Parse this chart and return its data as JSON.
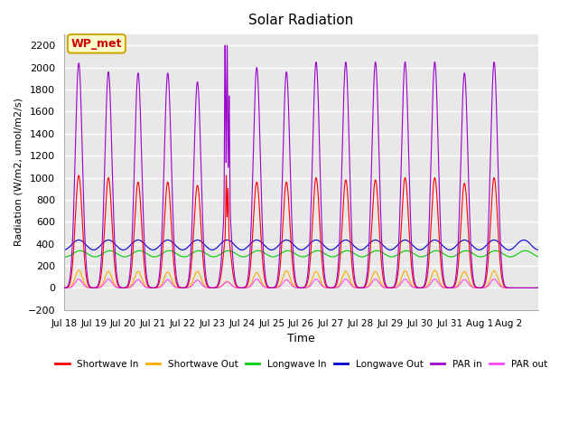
{
  "title": "Solar Radiation",
  "ylabel": "Radiation (W/m2, umol/m2/s)",
  "xlabel": "Time",
  "ylim": [
    -200,
    2300
  ],
  "yticks": [
    -200,
    0,
    200,
    400,
    600,
    800,
    1000,
    1200,
    1400,
    1600,
    1800,
    2000,
    2200
  ],
  "xtick_labels": [
    "Jul 18",
    "Jul 19",
    "Jul 20",
    "Jul 21",
    "Jul 22",
    "Jul 23",
    "Jul 24",
    "Jul 25",
    "Jul 26",
    "Jul 27",
    "Jul 28",
    "Jul 29",
    "Jul 30",
    "Jul 31",
    "Aug 1",
    "Aug 2"
  ],
  "annotation_text": "WP_met",
  "annotation_bg": "#ffffcc",
  "annotation_border": "#ccaa00",
  "annotation_text_color": "#cc0000",
  "bg_color": "#e8e8e8",
  "grid_color": "#ffffff",
  "series": {
    "shortwave_in": {
      "color": "#ff0000",
      "label": "Shortwave In"
    },
    "shortwave_out": {
      "color": "#ffaa00",
      "label": "Shortwave Out"
    },
    "longwave_in": {
      "color": "#00cc00",
      "label": "Longwave In"
    },
    "longwave_out": {
      "color": "#0000cc",
      "label": "Longwave Out"
    },
    "par_in": {
      "color": "#9900cc",
      "label": "PAR in"
    },
    "par_out": {
      "color": "#ff44ff",
      "label": "PAR out"
    }
  },
  "n_days": 16,
  "shortwave_in_peaks": [
    1020,
    1000,
    960,
    960,
    930,
    520,
    960,
    960,
    1000,
    980,
    980,
    1000,
    1000,
    950,
    1000,
    0
  ],
  "shortwave_out_peaks": [
    160,
    150,
    150,
    145,
    150,
    60,
    140,
    155,
    150,
    150,
    150,
    155,
    160,
    150,
    155,
    0
  ],
  "longwave_in_base": 310,
  "longwave_in_amp": 70,
  "longwave_out_base": 390,
  "longwave_out_amp": 90,
  "par_in_peaks": [
    2040,
    1960,
    1950,
    1950,
    1870,
    1000,
    2000,
    1960,
    2050,
    2050,
    2050,
    2050,
    2050,
    1950,
    2050,
    0
  ],
  "par_out_peaks": [
    80,
    80,
    75,
    75,
    70,
    55,
    80,
    75,
    80,
    80,
    80,
    80,
    80,
    75,
    80,
    0
  ]
}
